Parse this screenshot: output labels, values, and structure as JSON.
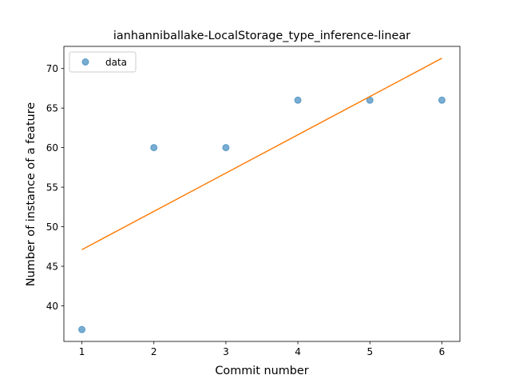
{
  "chart_data": {
    "type": "scatter",
    "title": "ianhanniballake-LocalStorage_type_inference-linear",
    "xlabel": "Commit number",
    "ylabel": "Number of instance of a feature",
    "xlim": [
      0.75,
      6.25
    ],
    "ylim": [
      35.5,
      72.8
    ],
    "xticks": [
      1,
      2,
      3,
      4,
      5,
      6
    ],
    "yticks": [
      40,
      45,
      50,
      55,
      60,
      65,
      70
    ],
    "grid": false,
    "legend_position": "top-left",
    "series": [
      {
        "name": "data",
        "kind": "scatter",
        "color": "#1f77b4",
        "x": [
          1,
          2,
          3,
          4,
          5,
          6
        ],
        "y": [
          37,
          60,
          60,
          66,
          66,
          66
        ]
      },
      {
        "kind": "line",
        "color": "#ff7f0e",
        "x": [
          1,
          6
        ],
        "y": [
          47.1,
          71.3
        ]
      }
    ]
  }
}
